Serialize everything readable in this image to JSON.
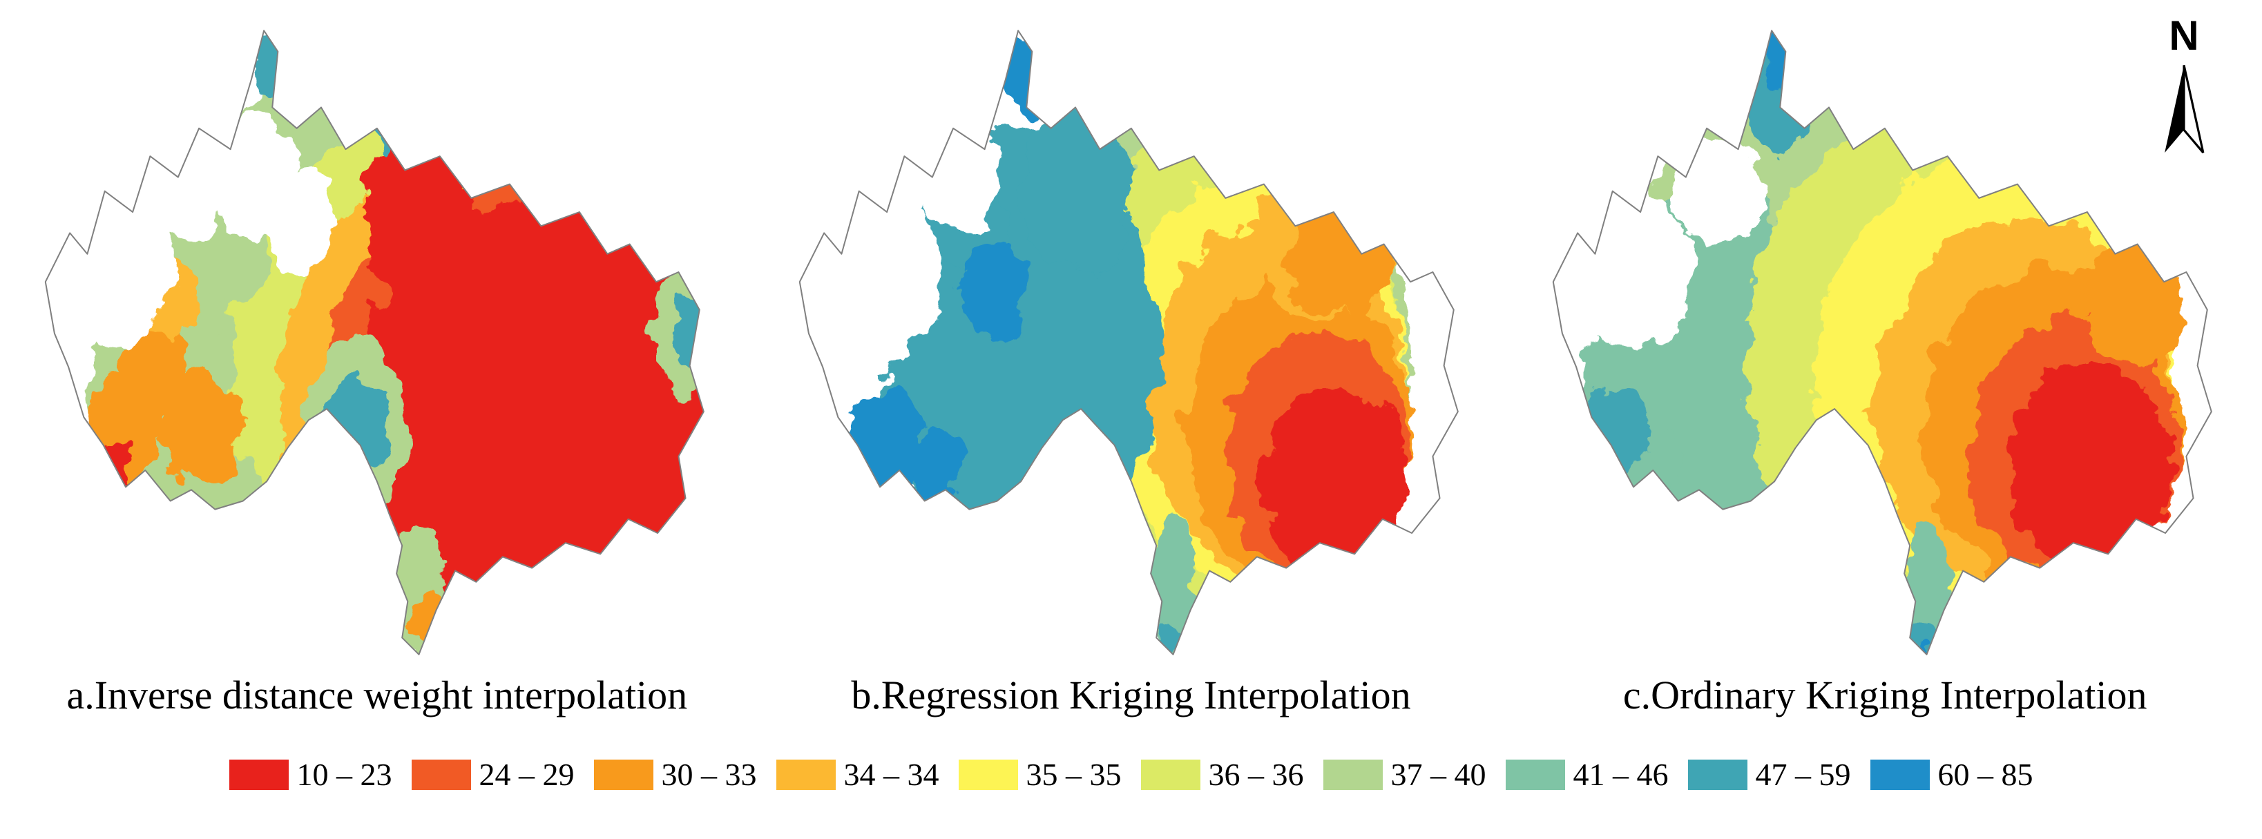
{
  "north": {
    "label": "N"
  },
  "outline_color": "#808080",
  "maps": [
    {
      "id": "a",
      "caption": "a.Inverse distance weight interpolation",
      "blobs": [
        [
          560,
          480,
          380,
          440,
          6
        ],
        [
          280,
          500,
          200,
          280,
          6
        ],
        [
          620,
          520,
          330,
          380,
          5
        ],
        [
          660,
          540,
          300,
          340,
          3
        ],
        [
          700,
          560,
          280,
          320,
          1
        ],
        [
          720,
          580,
          260,
          300,
          0
        ],
        [
          840,
          320,
          140,
          160,
          0
        ],
        [
          560,
          300,
          80,
          120,
          0
        ],
        [
          950,
          460,
          55,
          90,
          6
        ],
        [
          950,
          460,
          30,
          50,
          8
        ],
        [
          470,
          600,
          75,
          130,
          6
        ],
        [
          470,
          600,
          45,
          80,
          8
        ],
        [
          520,
          120,
          50,
          80,
          8
        ],
        [
          520,
          120,
          30,
          50,
          9
        ],
        [
          345,
          80,
          25,
          40,
          8
        ],
        [
          230,
          460,
          45,
          70,
          6
        ],
        [
          300,
          360,
          40,
          60,
          6
        ],
        [
          140,
          600,
          55,
          80,
          2
        ],
        [
          185,
          500,
          45,
          70,
          2
        ],
        [
          250,
          600,
          60,
          80,
          2
        ],
        [
          120,
          660,
          25,
          40,
          0
        ],
        [
          200,
          420,
          40,
          60,
          3
        ],
        [
          560,
          840,
          40,
          100,
          6
        ],
        [
          575,
          880,
          20,
          50,
          2
        ],
        [
          120,
          360,
          90,
          120,
          -1
        ],
        [
          230,
          240,
          70,
          90,
          -1
        ],
        [
          330,
          240,
          60,
          90,
          -1
        ],
        [
          390,
          300,
          50,
          80,
          -1
        ],
        [
          60,
          460,
          40,
          70,
          -1
        ]
      ]
    },
    {
      "id": "b",
      "caption": "b.Regression Kriging Interpolation",
      "blobs": [
        [
          600,
          500,
          300,
          400,
          6
        ],
        [
          640,
          510,
          250,
          350,
          5
        ],
        [
          680,
          530,
          215,
          300,
          4
        ],
        [
          710,
          560,
          185,
          260,
          3
        ],
        [
          740,
          600,
          160,
          220,
          2
        ],
        [
          765,
          640,
          130,
          180,
          1
        ],
        [
          790,
          680,
          105,
          140,
          0
        ],
        [
          340,
          490,
          200,
          320,
          8
        ],
        [
          420,
          260,
          80,
          120,
          8
        ],
        [
          260,
          300,
          60,
          80,
          8
        ],
        [
          350,
          100,
          25,
          55,
          9
        ],
        [
          300,
          400,
          50,
          70,
          9
        ],
        [
          150,
          620,
          55,
          70,
          9
        ],
        [
          220,
          660,
          40,
          50,
          9
        ],
        [
          780,
          330,
          100,
          110,
          3
        ],
        [
          800,
          350,
          75,
          85,
          2
        ],
        [
          905,
          255,
          55,
          75,
          8
        ],
        [
          560,
          840,
          35,
          110,
          7
        ],
        [
          555,
          905,
          20,
          35,
          8
        ],
        [
          130,
          380,
          100,
          130,
          -1
        ],
        [
          250,
          230,
          65,
          85,
          -1
        ],
        [
          60,
          500,
          50,
          90,
          -1
        ]
      ]
    },
    {
      "id": "c",
      "caption": "c.Ordinary Kriging Interpolation",
      "blobs": [
        [
          500,
          500,
          400,
          460,
          6
        ],
        [
          250,
          520,
          180,
          260,
          7
        ],
        [
          600,
          500,
          300,
          380,
          5
        ],
        [
          660,
          530,
          260,
          320,
          4
        ],
        [
          700,
          570,
          220,
          270,
          3
        ],
        [
          740,
          600,
          185,
          230,
          2
        ],
        [
          770,
          630,
          150,
          190,
          1
        ],
        [
          795,
          660,
          115,
          150,
          0
        ],
        [
          350,
          110,
          45,
          100,
          8
        ],
        [
          342,
          70,
          22,
          44,
          9
        ],
        [
          880,
          240,
          80,
          90,
          8
        ],
        [
          920,
          220,
          35,
          50,
          9
        ],
        [
          860,
          420,
          70,
          90,
          2
        ],
        [
          120,
          600,
          40,
          60,
          8
        ],
        [
          180,
          640,
          30,
          44,
          7
        ],
        [
          560,
          840,
          35,
          110,
          7
        ],
        [
          552,
          910,
          18,
          36,
          8
        ],
        [
          548,
          924,
          12,
          20,
          9
        ],
        [
          140,
          380,
          85,
          110,
          -1
        ],
        [
          260,
          260,
          65,
          80,
          -1
        ]
      ]
    }
  ],
  "legend": {
    "items": [
      {
        "label": "10 – 23",
        "color": "#e8221c"
      },
      {
        "label": "24 – 29",
        "color": "#f15a25"
      },
      {
        "label": "30 – 33",
        "color": "#f89a1c"
      },
      {
        "label": "34 – 34",
        "color": "#fcb831"
      },
      {
        "label": "35 – 35",
        "color": "#fdf454"
      },
      {
        "label": "36 – 36",
        "color": "#dcea65"
      },
      {
        "label": "37 – 40",
        "color": "#b2d68f"
      },
      {
        "label": "41 – 46",
        "color": "#7fc4a5"
      },
      {
        "label": "47 – 59",
        "color": "#3fa5b4"
      },
      {
        "label": "60 – 85",
        "color": "#1f8ec9"
      }
    ]
  }
}
